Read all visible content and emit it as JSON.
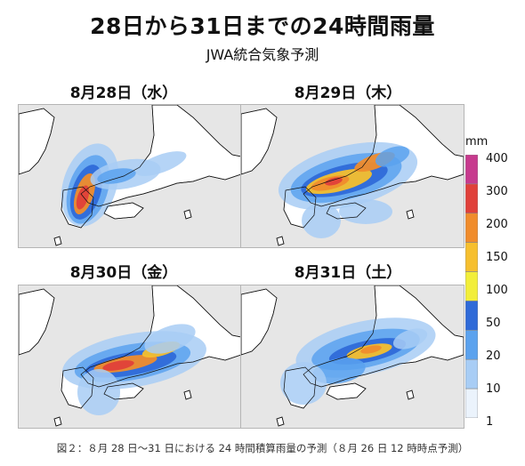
{
  "title": "28日から31日までの24時間雨量",
  "subtitle": "JWA統合気象予測",
  "panels": [
    {
      "label": "8月28日（水）"
    },
    {
      "label": "8月29日（木）"
    },
    {
      "label": "8月30日（金）"
    },
    {
      "label": "8月31日（土）"
    }
  ],
  "legend": {
    "unit": "mm",
    "levels": [
      "400",
      "300",
      "200",
      "150",
      "100",
      "50",
      "20",
      "10",
      "1"
    ],
    "colors": [
      "#c73a8e",
      "#e0403a",
      "#f08c2c",
      "#f6bf2e",
      "#f2ee3a",
      "#2f6ad8",
      "#5ba2ee",
      "#a8cdf5",
      "#ebf3fc"
    ]
  },
  "caption": "図２：８月 28 日～31 日における 24 時間積算雨量の予測（８月 26 日 12 時時点予測）",
  "colors": {
    "sea": "#e6e6e6",
    "land": "#ffffff",
    "border": "#b5b5b5"
  }
}
